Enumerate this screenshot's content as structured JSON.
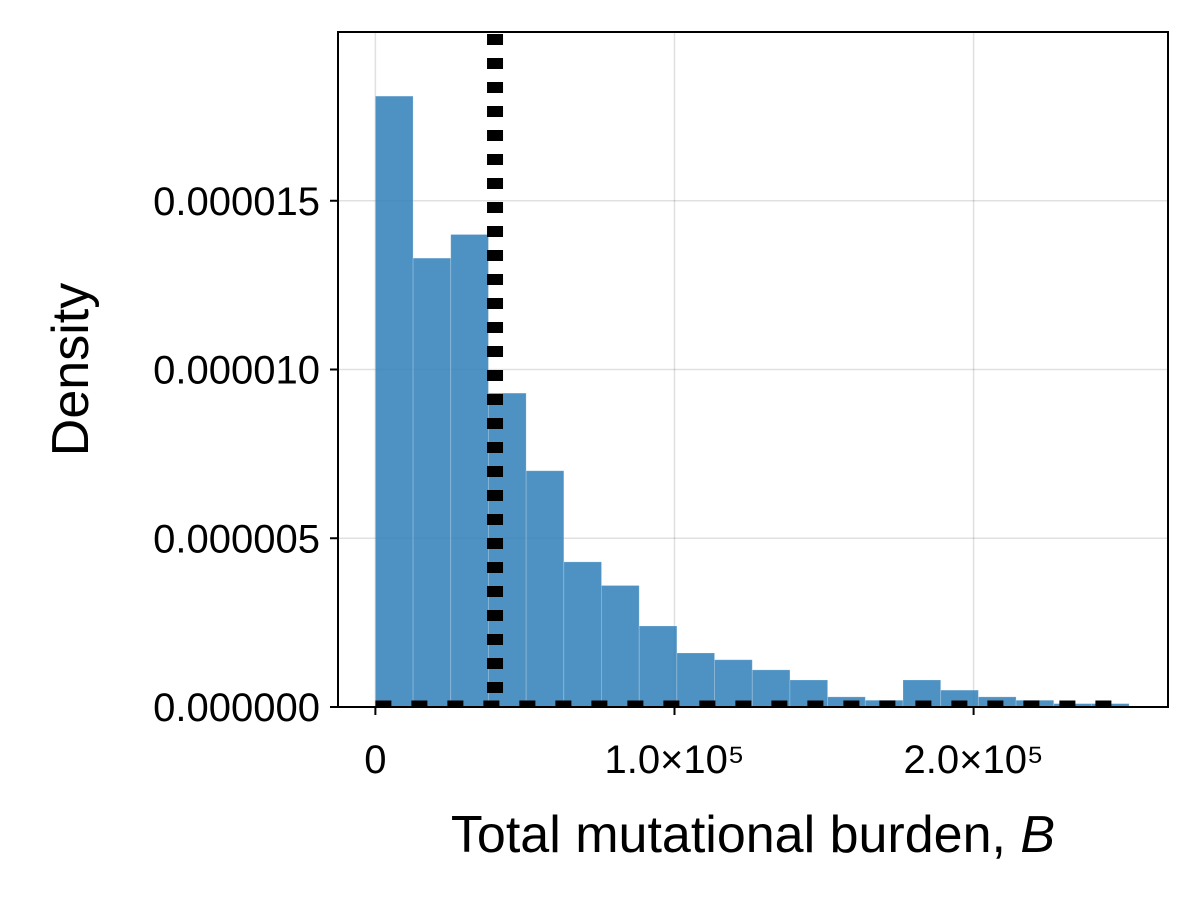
{
  "chart_data": {
    "type": "bar",
    "subtype": "histogram",
    "xlabel": "Total mutational burden, ",
    "xlabel_italic": "B",
    "ylabel": "Density",
    "xlim": [
      -12500,
      265000
    ],
    "ylim": [
      0,
      2e-05
    ],
    "grid": true,
    "x_ticks": [
      {
        "value": 0,
        "label": "0"
      },
      {
        "value": 100000,
        "label": "1.0×10⁵"
      },
      {
        "value": 200000,
        "label": "2.0×10⁵"
      }
    ],
    "y_ticks": [
      {
        "value": 0,
        "label": "0.000000"
      },
      {
        "value": 5e-06,
        "label": "0.000005"
      },
      {
        "value": 1e-05,
        "label": "0.000010"
      },
      {
        "value": 1.5e-05,
        "label": "0.000015"
      }
    ],
    "bin_width": 12600,
    "bin_starts": [
      0,
      12600,
      25200,
      37800,
      50400,
      63000,
      75600,
      88200,
      100800,
      113400,
      126000,
      138600,
      151200,
      163800,
      176400,
      189000,
      201600,
      214200,
      226800,
      239400
    ],
    "values": [
      1.81e-05,
      1.33e-05,
      1.4e-05,
      9.3e-06,
      7e-06,
      4.3e-06,
      3.6e-06,
      2.4e-06,
      1.6e-06,
      1.4e-06,
      1.1e-06,
      8e-07,
      3e-07,
      2e-07,
      8e-07,
      5e-07,
      3e-07,
      2e-07,
      1e-07,
      1e-07
    ],
    "bar_color": "#2f7fb8",
    "reference_line": {
      "x": 40000,
      "color": "#000000",
      "style": "dotted"
    },
    "baseline": {
      "y": 0,
      "x_range": [
        0,
        252000
      ],
      "color": "#000000",
      "style": "dashed"
    }
  }
}
